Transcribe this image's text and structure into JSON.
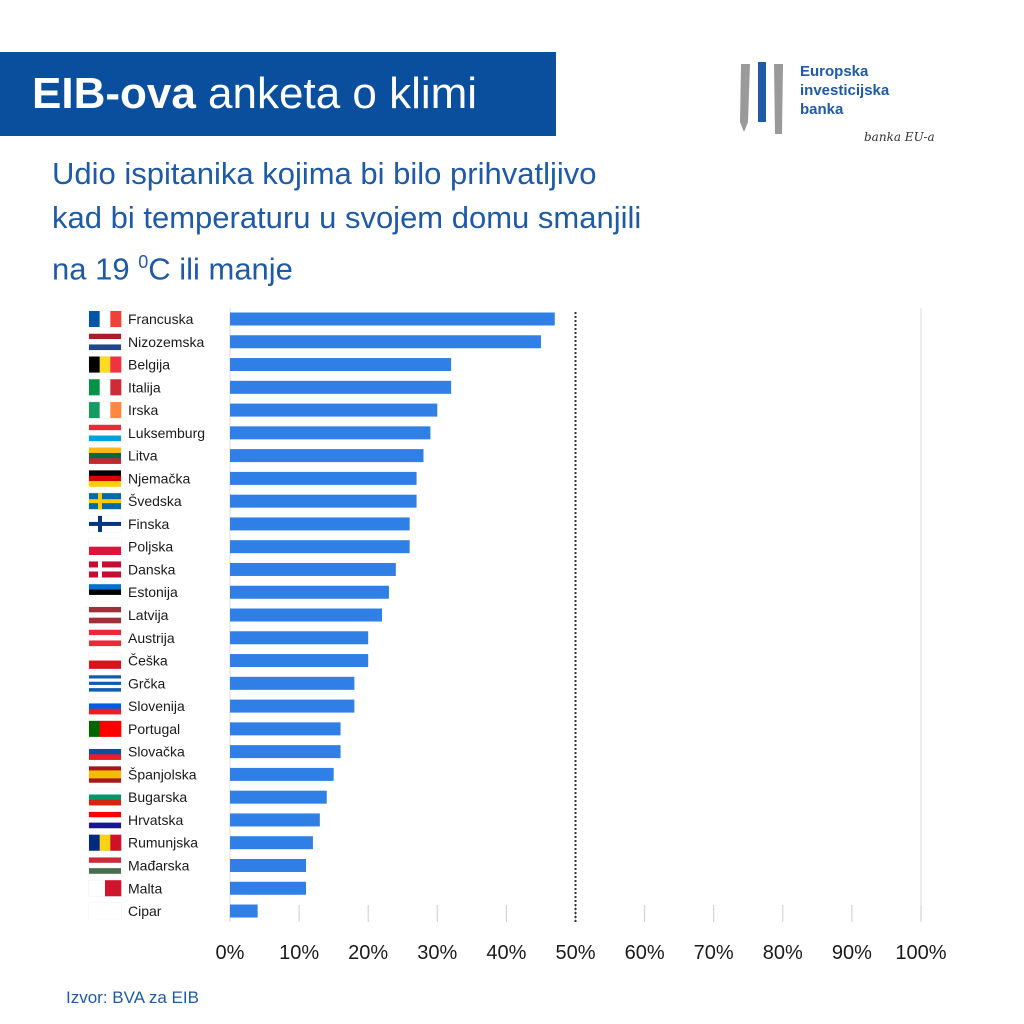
{
  "header": {
    "title_bold": "EIB-ova",
    "title_rest": " anketa o klimi"
  },
  "logo": {
    "line1": "Europska",
    "line2": "investicijska",
    "line3": "banka",
    "tagline": "banka EU-a"
  },
  "subtitle": {
    "line1": "Udio ispitanika kojima bi bilo prihvatljivo",
    "line2": "kad bi temperaturu u svojem domu smanjili",
    "line3_pre": "na 19 ",
    "line3_sup": "0",
    "line3_post": "C ili manje"
  },
  "source": "Izvor: BVA za EIB",
  "chart_data": {
    "type": "bar",
    "orientation": "horizontal",
    "bar_color": "#2f7fe6",
    "categories": [
      "Francuska",
      "Nizozemska",
      "Belgija",
      "Italija",
      "Irska",
      "Luksemburg",
      "Litva",
      "Njemačka",
      "Švedska",
      "Finska",
      "Poljska",
      "Danska",
      "Estonija",
      "Latvija",
      "Austrija",
      "Češka",
      "Grčka",
      "Slovenija",
      "Portugal",
      "Slovačka",
      "Španjolska",
      "Bugarska",
      "Hrvatska",
      "Rumunjska",
      "Mađarska",
      "Malta",
      "Cipar"
    ],
    "values": [
      47,
      45,
      32,
      32,
      30,
      29,
      28,
      27,
      27,
      26,
      26,
      24,
      23,
      22,
      20,
      20,
      18,
      18,
      16,
      16,
      15,
      14,
      13,
      12,
      11,
      11,
      4
    ],
    "xlim": [
      0,
      100
    ],
    "x_ticks": [
      "0%",
      "10%",
      "20%",
      "30%",
      "40%",
      "50%",
      "60%",
      "70%",
      "80%",
      "90%",
      "100%"
    ],
    "reference_line": {
      "value": 50,
      "style": "dotted"
    },
    "grid": "vertical ticks",
    "flags": [
      {
        "dir": "v",
        "c": [
          "#0055a4",
          "#ffffff",
          "#ef4135"
        ]
      },
      {
        "dir": "h",
        "c": [
          "#ae1c28",
          "#ffffff",
          "#21468b"
        ]
      },
      {
        "dir": "v",
        "c": [
          "#000000",
          "#fdda24",
          "#ef3340"
        ]
      },
      {
        "dir": "v",
        "c": [
          "#009246",
          "#ffffff",
          "#ce2b37"
        ]
      },
      {
        "dir": "v",
        "c": [
          "#169b62",
          "#ffffff",
          "#ff883e"
        ]
      },
      {
        "dir": "h",
        "c": [
          "#ed2939",
          "#ffffff",
          "#00a1de"
        ]
      },
      {
        "dir": "h",
        "c": [
          "#fdb913",
          "#006a44",
          "#c1272d"
        ]
      },
      {
        "dir": "h",
        "c": [
          "#000000",
          "#dd0000",
          "#ffce00"
        ]
      },
      {
        "dir": "cross",
        "c": [
          "#006aa7",
          "#fecc00"
        ]
      },
      {
        "dir": "cross",
        "c": [
          "#ffffff",
          "#003580"
        ]
      },
      {
        "dir": "h",
        "c": [
          "#ffffff",
          "#dc143c"
        ]
      },
      {
        "dir": "cross",
        "c": [
          "#c60c30",
          "#ffffff"
        ]
      },
      {
        "dir": "h",
        "c": [
          "#0072ce",
          "#000000",
          "#ffffff"
        ]
      },
      {
        "dir": "h",
        "c": [
          "#9e3039",
          "#ffffff",
          "#9e3039"
        ]
      },
      {
        "dir": "h",
        "c": [
          "#ed2939",
          "#ffffff",
          "#ed2939"
        ]
      },
      {
        "dir": "h",
        "c": [
          "#ffffff",
          "#d7141a"
        ]
      },
      {
        "dir": "h",
        "c": [
          "#0d5eaf",
          "#ffffff",
          "#0d5eaf",
          "#ffffff",
          "#0d5eaf"
        ]
      },
      {
        "dir": "h",
        "c": [
          "#ffffff",
          "#005ce5",
          "#ed1c24"
        ]
      },
      {
        "dir": "v",
        "c": [
          "#006600",
          "#ff0000",
          "#ff0000"
        ]
      },
      {
        "dir": "h",
        "c": [
          "#ffffff",
          "#0b4ea2",
          "#ee1c25"
        ]
      },
      {
        "dir": "h",
        "c": [
          "#aa151b",
          "#f1bf00",
          "#f1bf00",
          "#aa151b"
        ]
      },
      {
        "dir": "h",
        "c": [
          "#ffffff",
          "#00966e",
          "#d62612"
        ]
      },
      {
        "dir": "h",
        "c": [
          "#ff0000",
          "#ffffff",
          "#171796"
        ]
      },
      {
        "dir": "v",
        "c": [
          "#002b7f",
          "#fcd116",
          "#ce1126"
        ]
      },
      {
        "dir": "h",
        "c": [
          "#ce2939",
          "#ffffff",
          "#477050"
        ]
      },
      {
        "dir": "v",
        "c": [
          "#ffffff",
          "#cf142b"
        ]
      },
      {
        "dir": "h",
        "c": [
          "#ffffff"
        ]
      }
    ]
  }
}
